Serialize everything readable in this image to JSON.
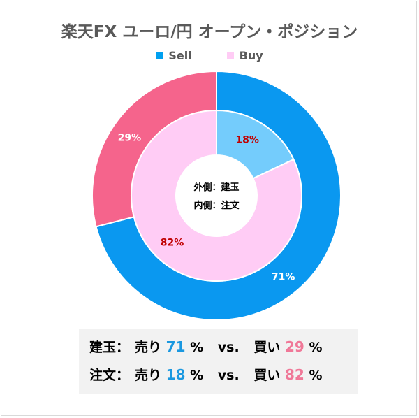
{
  "chart_data": {
    "type": "pie",
    "title": "楽天FX ユーロ/円 オープン・ポジション",
    "legend": [
      {
        "name": "Sell",
        "color": "#00a0f0"
      },
      {
        "name": "Buy",
        "color": "#ffccf5"
      }
    ],
    "legend_position": "top",
    "center_text": [
      "外側：建玉",
      "内側：注文"
    ],
    "rings": [
      {
        "name": "outer",
        "slices": [
          {
            "label": "Sell",
            "value": 71,
            "display": "71%",
            "color": "#0a98f0",
            "label_color": "#ffffff"
          },
          {
            "label": "Buy",
            "value": 29,
            "display": "29%",
            "color": "#f5648c",
            "label_color": "#ffffff"
          }
        ]
      },
      {
        "name": "inner",
        "slices": [
          {
            "label": "Sell",
            "value": 18,
            "display": "18%",
            "color": "#74ccfc",
            "label_color": "#c00000"
          },
          {
            "label": "Buy",
            "value": 82,
            "display": "82%",
            "color": "#ffccf5",
            "label_color": "#c00000"
          }
        ]
      }
    ]
  },
  "summary": {
    "rows": [
      {
        "label": "建玉：",
        "sell_word": "売り",
        "sell_value": "71",
        "pct1": "%",
        "vs": "vs.",
        "buy_word": "買い",
        "buy_value": "29",
        "pct2": "%"
      },
      {
        "label": "注文：",
        "sell_word": "売り",
        "sell_value": "18",
        "pct1": "%",
        "vs": "vs.",
        "buy_word": "買い",
        "buy_value": "82",
        "pct2": "%"
      }
    ],
    "sell_color": "#1a98e0",
    "buy_color": "#f07898"
  }
}
